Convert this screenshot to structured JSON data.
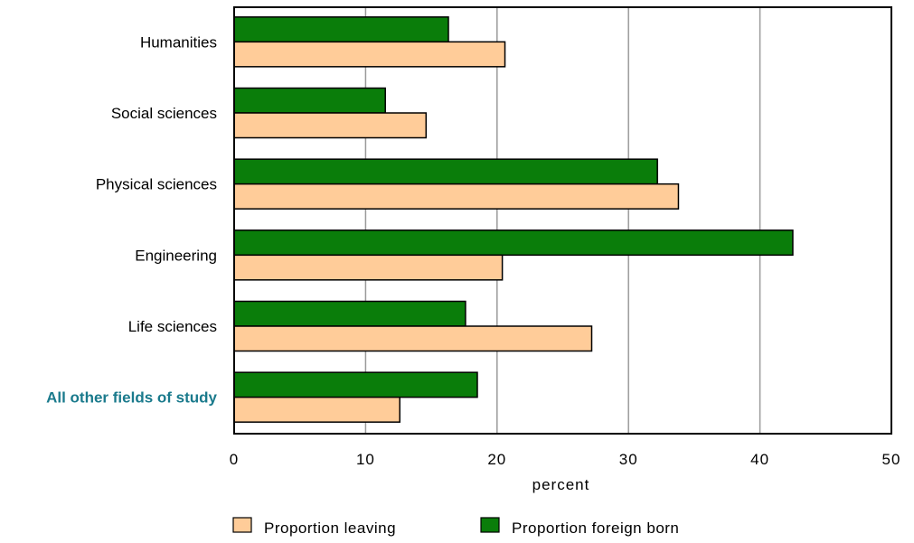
{
  "chart_data": {
    "type": "bar",
    "orientation": "horizontal",
    "categories": [
      "Humanities",
      "Social sciences",
      "Physical sciences",
      "Engineering",
      "Life sciences",
      "All other fields of study"
    ],
    "highlight_category": "All other fields of study",
    "series": [
      {
        "name": "Proportion foreign born",
        "color": "#0a7d0a",
        "values": [
          16.3,
          11.5,
          32.2,
          42.5,
          17.6,
          18.5
        ]
      },
      {
        "name": "Proportion leaving",
        "color": "#ffcc99",
        "values": [
          20.6,
          14.6,
          33.8,
          20.4,
          27.2,
          12.6
        ]
      }
    ],
    "xlabel": "percent",
    "xlim": [
      0,
      50
    ],
    "xticks": [
      0,
      10,
      20,
      30,
      40,
      50
    ],
    "grid": "vertical",
    "legend": {
      "position": "bottom",
      "order": [
        "Proportion leaving",
        "Proportion foreign born"
      ]
    },
    "colors": {
      "highlight_label": "#1a7a8c",
      "grid": "#9a9a9a",
      "frame": "#000000"
    }
  }
}
